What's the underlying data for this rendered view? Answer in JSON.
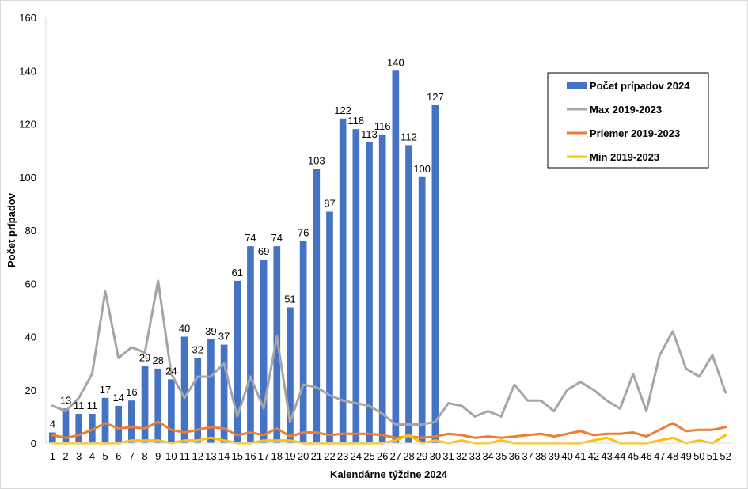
{
  "chart_data": {
    "type": "bar",
    "xlabel": "Kalendárne týždne 2024",
    "ylabel": "Počet prípadov",
    "ylim": [
      0,
      160
    ],
    "yticks": [
      0,
      20,
      40,
      60,
      80,
      100,
      120,
      140,
      160
    ],
    "grid": false,
    "legend_position": "top-right",
    "colors": {
      "bars": "#4472C4",
      "max": "#A5A5A5",
      "mean": "#ED7D31",
      "min": "#FFC000"
    },
    "categories": [
      "1",
      "2",
      "3",
      "4",
      "5",
      "6",
      "7",
      "8",
      "9",
      "10",
      "11",
      "12",
      "13",
      "14",
      "15",
      "16",
      "17",
      "18",
      "19",
      "20",
      "21",
      "22",
      "23",
      "24",
      "25",
      "26",
      "27",
      "28",
      "29",
      "30",
      "31",
      "32",
      "33",
      "34",
      "35",
      "36",
      "37",
      "38",
      "39",
      "40",
      "41",
      "42",
      "43",
      "44",
      "45",
      "46",
      "47",
      "48",
      "49",
      "50",
      "51",
      "52"
    ],
    "bars": {
      "name": "Počet prípadov 2024",
      "values": [
        4,
        13,
        11,
        11,
        17,
        14,
        16,
        29,
        28,
        24,
        40,
        32,
        39,
        37,
        61,
        74,
        69,
        74,
        51,
        76,
        103,
        87,
        122,
        118,
        113,
        116,
        140,
        112,
        100,
        127
      ]
    },
    "lines": [
      {
        "name": "Max 2019-2023",
        "key": "max",
        "values": [
          14,
          12,
          17,
          26,
          57,
          32,
          36,
          34,
          61,
          26,
          17,
          25,
          25,
          30,
          10,
          25,
          13,
          40,
          8,
          22,
          21,
          18,
          16,
          15,
          14,
          11,
          7,
          7,
          7,
          8,
          15,
          14,
          10,
          12,
          10,
          22,
          16,
          16,
          12,
          20,
          23,
          20,
          16,
          13,
          26,
          12,
          33,
          42,
          28,
          25,
          33,
          19
        ]
      },
      {
        "name": "Priemer 2019-2023",
        "key": "mean",
        "values": [
          3,
          2,
          3,
          5,
          7.5,
          5.5,
          6,
          5.5,
          8,
          5,
          4,
          5,
          6,
          5.5,
          3,
          4,
          3,
          5.5,
          2.5,
          4,
          4,
          3,
          3.5,
          3.5,
          3.5,
          3,
          2,
          2.5,
          2,
          2.5,
          3.5,
          3,
          2,
          2.5,
          2,
          2.5,
          3,
          3.5,
          2.5,
          3.5,
          4.5,
          3,
          3.5,
          3.5,
          4,
          2.5,
          5,
          7.5,
          4.5,
          5,
          5,
          6
        ]
      },
      {
        "name": "Min 2019-2023",
        "key": "min",
        "values": [
          0,
          0,
          0,
          0,
          0,
          0,
          1,
          1,
          1,
          0,
          1,
          1,
          2,
          1,
          0,
          0,
          1,
          1,
          1,
          0,
          0,
          0,
          0,
          0,
          0,
          0,
          1,
          3,
          0,
          1,
          0,
          1,
          0,
          0,
          1,
          0,
          0,
          0,
          0,
          0,
          0,
          1,
          2,
          0,
          0,
          0,
          1,
          2,
          0,
          1,
          0,
          3
        ]
      }
    ]
  }
}
